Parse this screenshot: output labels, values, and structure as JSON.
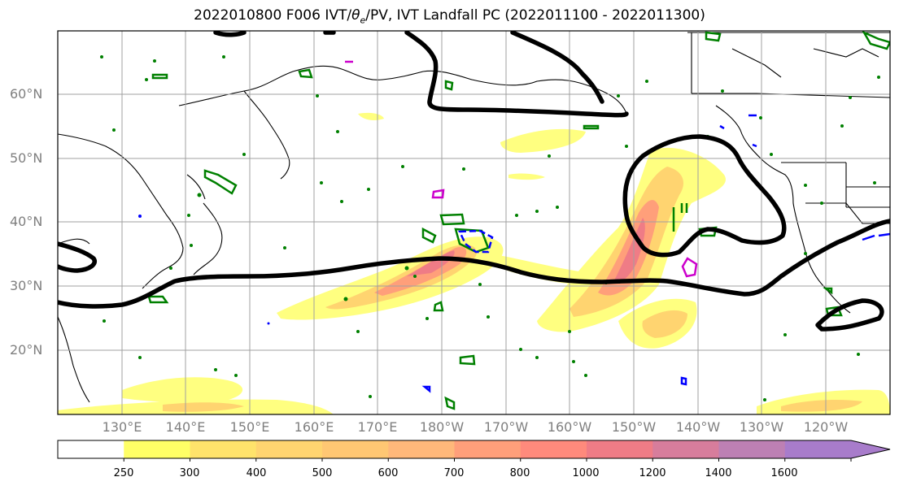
{
  "title": {
    "prefix": "2022010800 F006 IVT/",
    "symbol": "θ",
    "subscript": "e",
    "suffix": "/PV, IVT Landfall PC (2022011100 - 2022011300)"
  },
  "map": {
    "projection": "PlateCarree",
    "lon_range": [
      "117°E",
      "117°W"
    ],
    "lat_range": [
      "10°N",
      "70°N"
    ],
    "gridlines": true,
    "lat_labels": [
      "60°N",
      "50°N",
      "40°N",
      "30°N",
      "20°N"
    ],
    "lon_labels": [
      "130°E",
      "140°E",
      "150°E",
      "160°E",
      "170°E",
      "180°W",
      "170°W",
      "160°W",
      "150°W",
      "140°W",
      "130°W",
      "120°W"
    ],
    "contours": {
      "black": "IVT Landfall PC",
      "green": "PV",
      "blue": "PV",
      "magenta": "PV"
    }
  },
  "colorbar": {
    "labels": [
      "250",
      "300",
      "400",
      "500",
      "600",
      "700",
      "800",
      "1000",
      "1200",
      "1400",
      "1600"
    ],
    "colors": [
      "#ffffff",
      "#ffff66",
      "#ffe36b",
      "#ffd470",
      "#ffc773",
      "#ffb87a",
      "#ff9f7a",
      "#ff8a7c",
      "#ef7c86",
      "#d77d9c",
      "#bd80b4",
      "#a87ccb"
    ],
    "extend": "max"
  }
}
